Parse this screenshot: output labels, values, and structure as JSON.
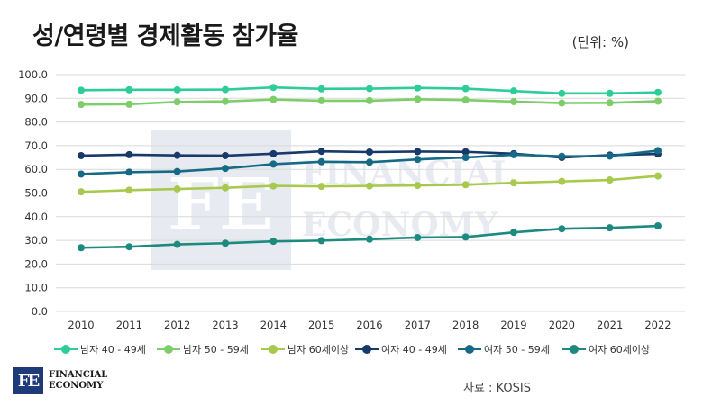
{
  "title": "성/연령별 경제활동 참가율",
  "unit": "(단위: %)",
  "source": "자료 : KOSIS",
  "logo": {
    "line1": "FINANCIAL",
    "line2": "ECONOMY",
    "mark": "FE"
  },
  "watermark": {
    "line1": "FINANCIAL",
    "line2": "ECONOMY"
  },
  "colors": {
    "grid": "#d9d9d9",
    "male_40_49": "#2ecc9a",
    "male_50_59": "#7dcd6a",
    "male_60p": "#a8c94e",
    "female_40_49": "#173a6b",
    "female_50_59": "#166a86",
    "female_60p": "#1d8a80"
  },
  "chart_data": {
    "type": "line",
    "title": "성/연령별 경제활동 참가율",
    "unit": "(단위: %)",
    "xlabel": "",
    "ylabel": "",
    "ylim": [
      0,
      100
    ],
    "yticks": [
      "0.0",
      "10.0",
      "20.0",
      "30.0",
      "40.0",
      "50.0",
      "60.0",
      "70.0",
      "80.0",
      "90.0",
      "100.0"
    ],
    "grid": true,
    "legend_position": "bottom",
    "categories": [
      "2010",
      "2011",
      "2012",
      "2013",
      "2014",
      "2015",
      "2016",
      "2017",
      "2018",
      "2019",
      "2020",
      "2021",
      "2022"
    ],
    "series": [
      {
        "name": "남자 40 - 49세",
        "color": "#2ecc9a",
        "values": [
          93.4,
          93.6,
          93.6,
          93.7,
          94.6,
          94.0,
          94.1,
          94.4,
          94.1,
          93.1,
          92.1,
          92.1,
          92.5
        ]
      },
      {
        "name": "남자 50 - 59세",
        "color": "#7dcd6a",
        "values": [
          87.4,
          87.5,
          88.5,
          88.7,
          89.5,
          89.0,
          89.0,
          89.6,
          89.3,
          88.6,
          88.0,
          88.1,
          88.8
        ]
      },
      {
        "name": "남자 60세이상",
        "color": "#a8c94e",
        "values": [
          50.5,
          51.2,
          51.7,
          52.2,
          53.0,
          52.8,
          53.0,
          53.2,
          53.5,
          54.3,
          54.9,
          55.5,
          57.2
        ]
      },
      {
        "name": "여자 40 - 49세",
        "color": "#173a6b",
        "values": [
          65.8,
          66.2,
          65.9,
          65.8,
          66.6,
          67.6,
          67.3,
          67.5,
          67.4,
          66.6,
          65.0,
          66.0,
          66.5
        ]
      },
      {
        "name": "여자 50 - 59세",
        "color": "#166a86",
        "values": [
          58.0,
          58.8,
          59.1,
          60.4,
          62.2,
          63.2,
          63.0,
          64.2,
          65.0,
          66.2,
          65.5,
          65.6,
          67.9
        ]
      },
      {
        "name": "여자 60세이상",
        "color": "#1d8a80",
        "values": [
          26.9,
          27.3,
          28.3,
          28.8,
          29.6,
          29.9,
          30.5,
          31.2,
          31.4,
          33.4,
          34.9,
          35.3,
          36.1
        ]
      }
    ]
  }
}
